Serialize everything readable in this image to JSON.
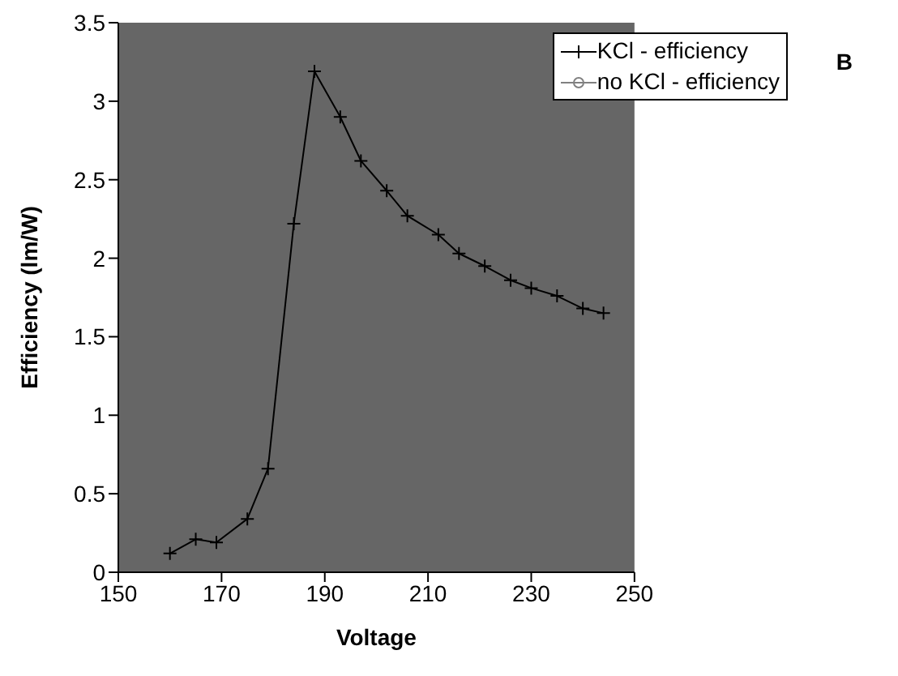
{
  "chart_data": {
    "type": "line",
    "xlabel": "Voltage",
    "ylabel": "Efficiency (lm/W)",
    "x": [
      160,
      165,
      169,
      175,
      179,
      184,
      188,
      193,
      197,
      202,
      206,
      212,
      216,
      221,
      226,
      230,
      235,
      240,
      244
    ],
    "series": [
      {
        "name": "KCl - efficiency",
        "color": "#000000",
        "marker": "cross",
        "values": [
          0.12,
          0.21,
          0.19,
          0.34,
          0.66,
          2.22,
          3.19,
          2.9,
          2.62,
          2.43,
          2.27,
          2.15,
          2.03,
          1.95,
          1.86,
          1.81,
          1.76,
          1.68,
          1.65
        ]
      },
      {
        "name": "no KCl - efficiency",
        "color": "#808080",
        "marker": "circle",
        "values": [
          null,
          null,
          null,
          null,
          null,
          null,
          null,
          null,
          null,
          null,
          null,
          null,
          null,
          null,
          null,
          null,
          null,
          null,
          null
        ]
      }
    ],
    "xlim": [
      150,
      250
    ],
    "xticks": [
      150,
      170,
      190,
      210,
      230,
      250
    ],
    "ylim": [
      0,
      3.5
    ],
    "yticks": [
      0,
      0.5,
      1,
      1.5,
      2,
      2.5,
      3,
      3.5
    ],
    "legend": "top right",
    "annotations": [
      "B"
    ]
  }
}
